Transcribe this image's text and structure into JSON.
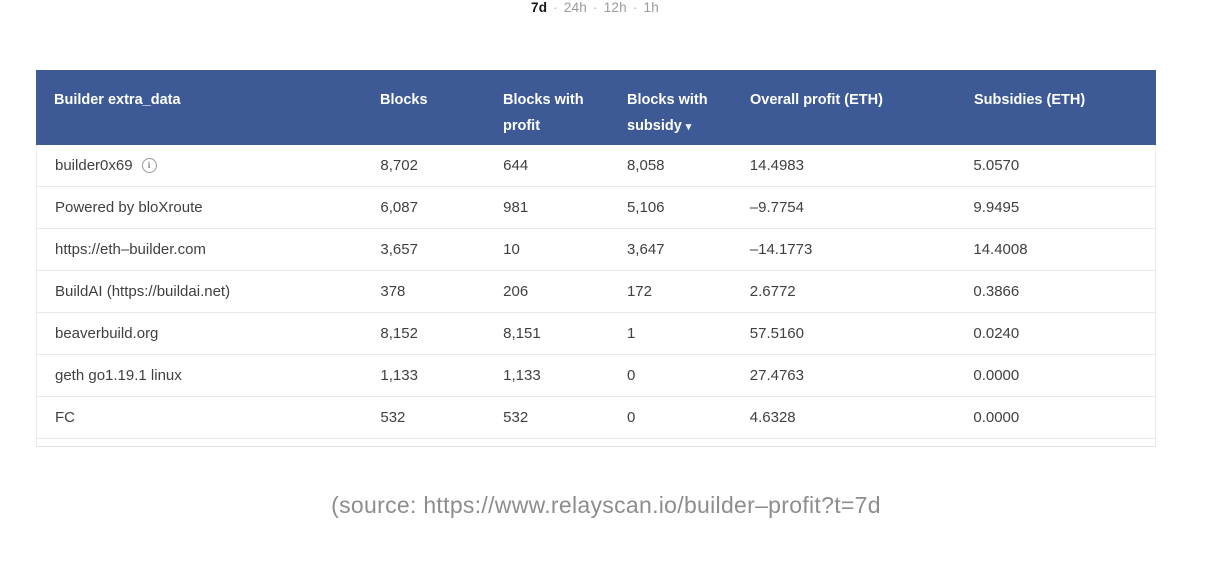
{
  "time_filter": {
    "separator": "·",
    "options": [
      {
        "label": "7d",
        "active": true
      },
      {
        "label": "24h",
        "active": false
      },
      {
        "label": "12h",
        "active": false
      },
      {
        "label": "1h",
        "active": false
      }
    ]
  },
  "table": {
    "columns": [
      "Builder extra_data",
      "Blocks",
      "Blocks with profit",
      "Blocks with subsidy",
      "Overall profit (ETH)",
      "Subsidies (ETH)"
    ],
    "sort": {
      "column": "Blocks with subsidy",
      "direction": "desc",
      "arrow": "▾"
    },
    "info_icon_glyph": "i",
    "rows": [
      {
        "builder": "builder0x69",
        "has_info_icon": true,
        "blocks": "8,702",
        "blocks_with_profit": "644",
        "blocks_with_subsidy": "8,058",
        "overall_profit_eth": "14.4983",
        "subsidies_eth": "5.0570"
      },
      {
        "builder": "Powered by bloXroute",
        "has_info_icon": false,
        "blocks": "6,087",
        "blocks_with_profit": "981",
        "blocks_with_subsidy": "5,106",
        "overall_profit_eth": "–9.7754",
        "subsidies_eth": "9.9495"
      },
      {
        "builder": "https://eth–builder.com",
        "has_info_icon": false,
        "blocks": "3,657",
        "blocks_with_profit": "10",
        "blocks_with_subsidy": "3,647",
        "overall_profit_eth": "–14.1773",
        "subsidies_eth": "14.4008"
      },
      {
        "builder": "BuildAI (https://buildai.net)",
        "has_info_icon": false,
        "blocks": "378",
        "blocks_with_profit": "206",
        "blocks_with_subsidy": "172",
        "overall_profit_eth": "2.6772",
        "subsidies_eth": "0.3866"
      },
      {
        "builder": "beaverbuild.org",
        "has_info_icon": false,
        "blocks": "8,152",
        "blocks_with_profit": "8,151",
        "blocks_with_subsidy": "1",
        "overall_profit_eth": "57.5160",
        "subsidies_eth": "0.0240"
      },
      {
        "builder": "geth go1.19.1 linux",
        "has_info_icon": false,
        "blocks": "1,133",
        "blocks_with_profit": "1,133",
        "blocks_with_subsidy": "0",
        "overall_profit_eth": "27.4763",
        "subsidies_eth": "0.0000"
      },
      {
        "builder": "FC",
        "has_info_icon": false,
        "blocks": "532",
        "blocks_with_profit": "532",
        "blocks_with_subsidy": "0",
        "overall_profit_eth": "4.6328",
        "subsidies_eth": "0.0000"
      }
    ]
  },
  "caption": {
    "text": "(source: https://www.relayscan.io/builder–profit?t=7d"
  },
  "colors": {
    "header_bg": "#3d5a96",
    "header_text": "#ffffff",
    "row_text": "#404040",
    "row_border": "#e9e9e9",
    "muted_text": "#9b9b9b",
    "caption_text": "#8d8d8d"
  }
}
